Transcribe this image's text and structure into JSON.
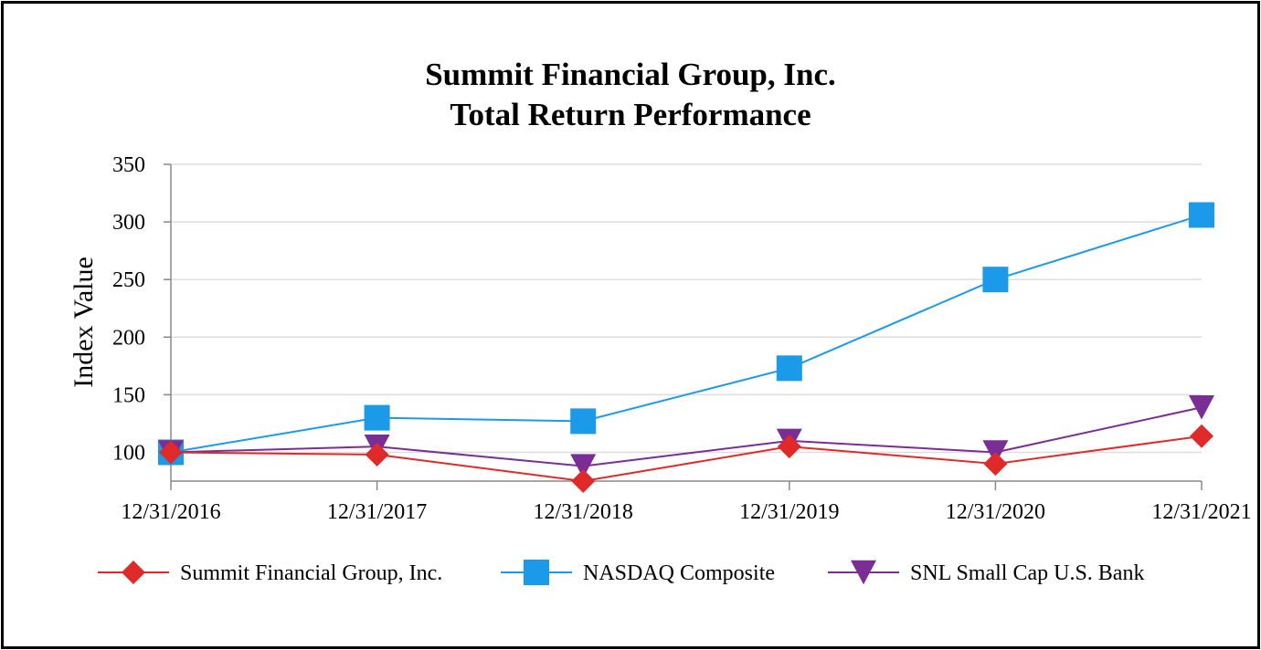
{
  "chart_data": {
    "type": "line",
    "title": "Summit Financial Group, Inc.",
    "subtitle": "Total Return Performance",
    "xlabel": "",
    "ylabel": "Index Value",
    "categories": [
      "12/31/2016",
      "12/31/2017",
      "12/31/2018",
      "12/31/2019",
      "12/31/2020",
      "12/31/2021"
    ],
    "ylim": [
      75,
      350
    ],
    "yticks": [
      100,
      150,
      200,
      250,
      300,
      350
    ],
    "grid": true,
    "legend_position": "bottom",
    "series": [
      {
        "name": "Summit Financial Group, Inc.",
        "values": [
          100,
          98,
          75,
          105,
          90,
          114
        ],
        "color": "#e02a2a",
        "marker": "diamond"
      },
      {
        "name": "NASDAQ Composite",
        "values": [
          100,
          130,
          127,
          173,
          250,
          306
        ],
        "color": "#1a9ae8",
        "marker": "square"
      },
      {
        "name": "SNL Small Cap U.S. Bank",
        "values": [
          100,
          105,
          88,
          110,
          100,
          139
        ],
        "color": "#7b2d96",
        "marker": "triangle-down"
      }
    ]
  }
}
